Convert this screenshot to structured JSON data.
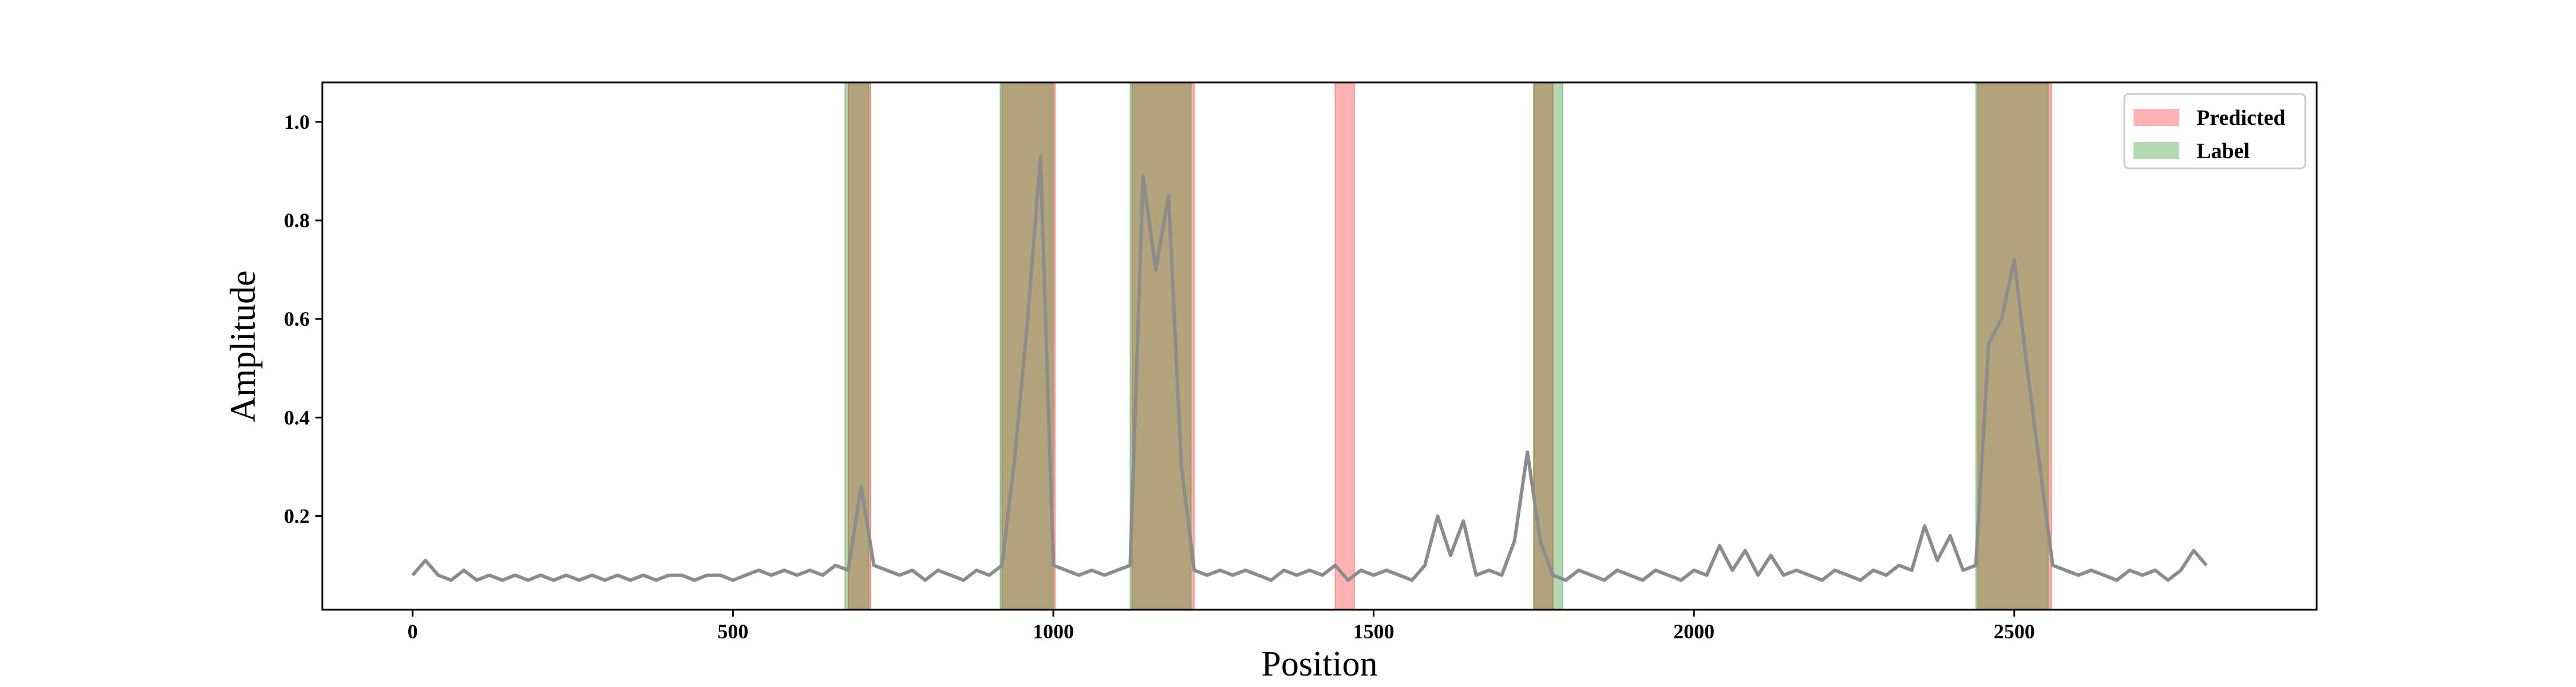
{
  "chart_data": {
    "type": "line",
    "xlabel": "Position",
    "ylabel": "Amplitude",
    "xlim": [
      -141,
      2972
    ],
    "ylim": [
      0.01,
      1.08
    ],
    "xticks": [
      0,
      500,
      1000,
      1500,
      2000,
      2500
    ],
    "yticks": [
      0.2,
      0.4,
      0.6,
      0.8,
      {
        "value": 1,
        "label": "1.0"
      }
    ],
    "legend": "upper right",
    "line_color": "#8c8c8c",
    "x": [
      0,
      20,
      40,
      60,
      80,
      100,
      120,
      140,
      160,
      180,
      200,
      220,
      240,
      260,
      280,
      300,
      320,
      340,
      360,
      380,
      400,
      420,
      440,
      460,
      480,
      500,
      520,
      540,
      560,
      580,
      600,
      620,
      640,
      660,
      680,
      700,
      720,
      740,
      760,
      780,
      800,
      820,
      840,
      860,
      880,
      900,
      920,
      940,
      960,
      980,
      1000,
      1020,
      1040,
      1060,
      1080,
      1100,
      1120,
      1140,
      1160,
      1180,
      1200,
      1220,
      1240,
      1260,
      1280,
      1300,
      1320,
      1340,
      1360,
      1380,
      1400,
      1420,
      1440,
      1460,
      1480,
      1500,
      1520,
      1540,
      1560,
      1580,
      1600,
      1620,
      1640,
      1660,
      1680,
      1700,
      1720,
      1740,
      1760,
      1780,
      1800,
      1820,
      1840,
      1860,
      1880,
      1900,
      1920,
      1940,
      1960,
      1980,
      2000,
      2020,
      2040,
      2060,
      2080,
      2100,
      2120,
      2140,
      2160,
      2180,
      2200,
      2220,
      2240,
      2260,
      2280,
      2300,
      2320,
      2340,
      2360,
      2380,
      2400,
      2420,
      2440,
      2460,
      2480,
      2500,
      2520,
      2540,
      2560,
      2580,
      2600,
      2620,
      2640,
      2660,
      2680,
      2700,
      2720,
      2740,
      2760,
      2780,
      2800
    ],
    "values": [
      0.08,
      0.11,
      0.08,
      0.07,
      0.09,
      0.07,
      0.08,
      0.07,
      0.08,
      0.07,
      0.08,
      0.07,
      0.08,
      0.07,
      0.08,
      0.07,
      0.08,
      0.07,
      0.08,
      0.07,
      0.08,
      0.08,
      0.07,
      0.08,
      0.08,
      0.07,
      0.08,
      0.09,
      0.08,
      0.09,
      0.08,
      0.09,
      0.08,
      0.1,
      0.09,
      0.26,
      0.1,
      0.09,
      0.08,
      0.09,
      0.07,
      0.09,
      0.08,
      0.07,
      0.09,
      0.08,
      0.1,
      0.32,
      0.6,
      0.93,
      0.1,
      0.09,
      0.08,
      0.09,
      0.08,
      0.09,
      0.1,
      0.89,
      0.7,
      0.85,
      0.3,
      0.09,
      0.08,
      0.09,
      0.08,
      0.09,
      0.08,
      0.07,
      0.09,
      0.08,
      0.09,
      0.08,
      0.1,
      0.07,
      0.09,
      0.08,
      0.09,
      0.08,
      0.07,
      0.1,
      0.2,
      0.12,
      0.19,
      0.08,
      0.09,
      0.08,
      0.15,
      0.33,
      0.15,
      0.08,
      0.07,
      0.09,
      0.08,
      0.07,
      0.09,
      0.08,
      0.07,
      0.09,
      0.08,
      0.07,
      0.09,
      0.08,
      0.14,
      0.09,
      0.13,
      0.08,
      0.12,
      0.08,
      0.09,
      0.08,
      0.07,
      0.09,
      0.08,
      0.07,
      0.09,
      0.08,
      0.1,
      0.09,
      0.18,
      0.11,
      0.16,
      0.09,
      0.1,
      0.55,
      0.6,
      0.72,
      0.5,
      0.3,
      0.1,
      0.09,
      0.08,
      0.09,
      0.08,
      0.07,
      0.09,
      0.08,
      0.09,
      0.07,
      0.09,
      0.13,
      0.1
    ],
    "series": [
      {
        "name": "Predicted",
        "color": "#ff0000",
        "spans": [
          [
            680,
            715
          ],
          [
            920,
            1003
          ],
          [
            1123,
            1220
          ],
          [
            1440,
            1470
          ],
          [
            1750,
            1780
          ],
          [
            2443,
            2558
          ]
        ]
      },
      {
        "name": "Label",
        "color": "#008000",
        "spans": [
          [
            675,
            712
          ],
          [
            917,
            1000
          ],
          [
            1120,
            1215
          ],
          [
            1750,
            1795
          ],
          [
            2440,
            2553
          ]
        ]
      }
    ]
  }
}
